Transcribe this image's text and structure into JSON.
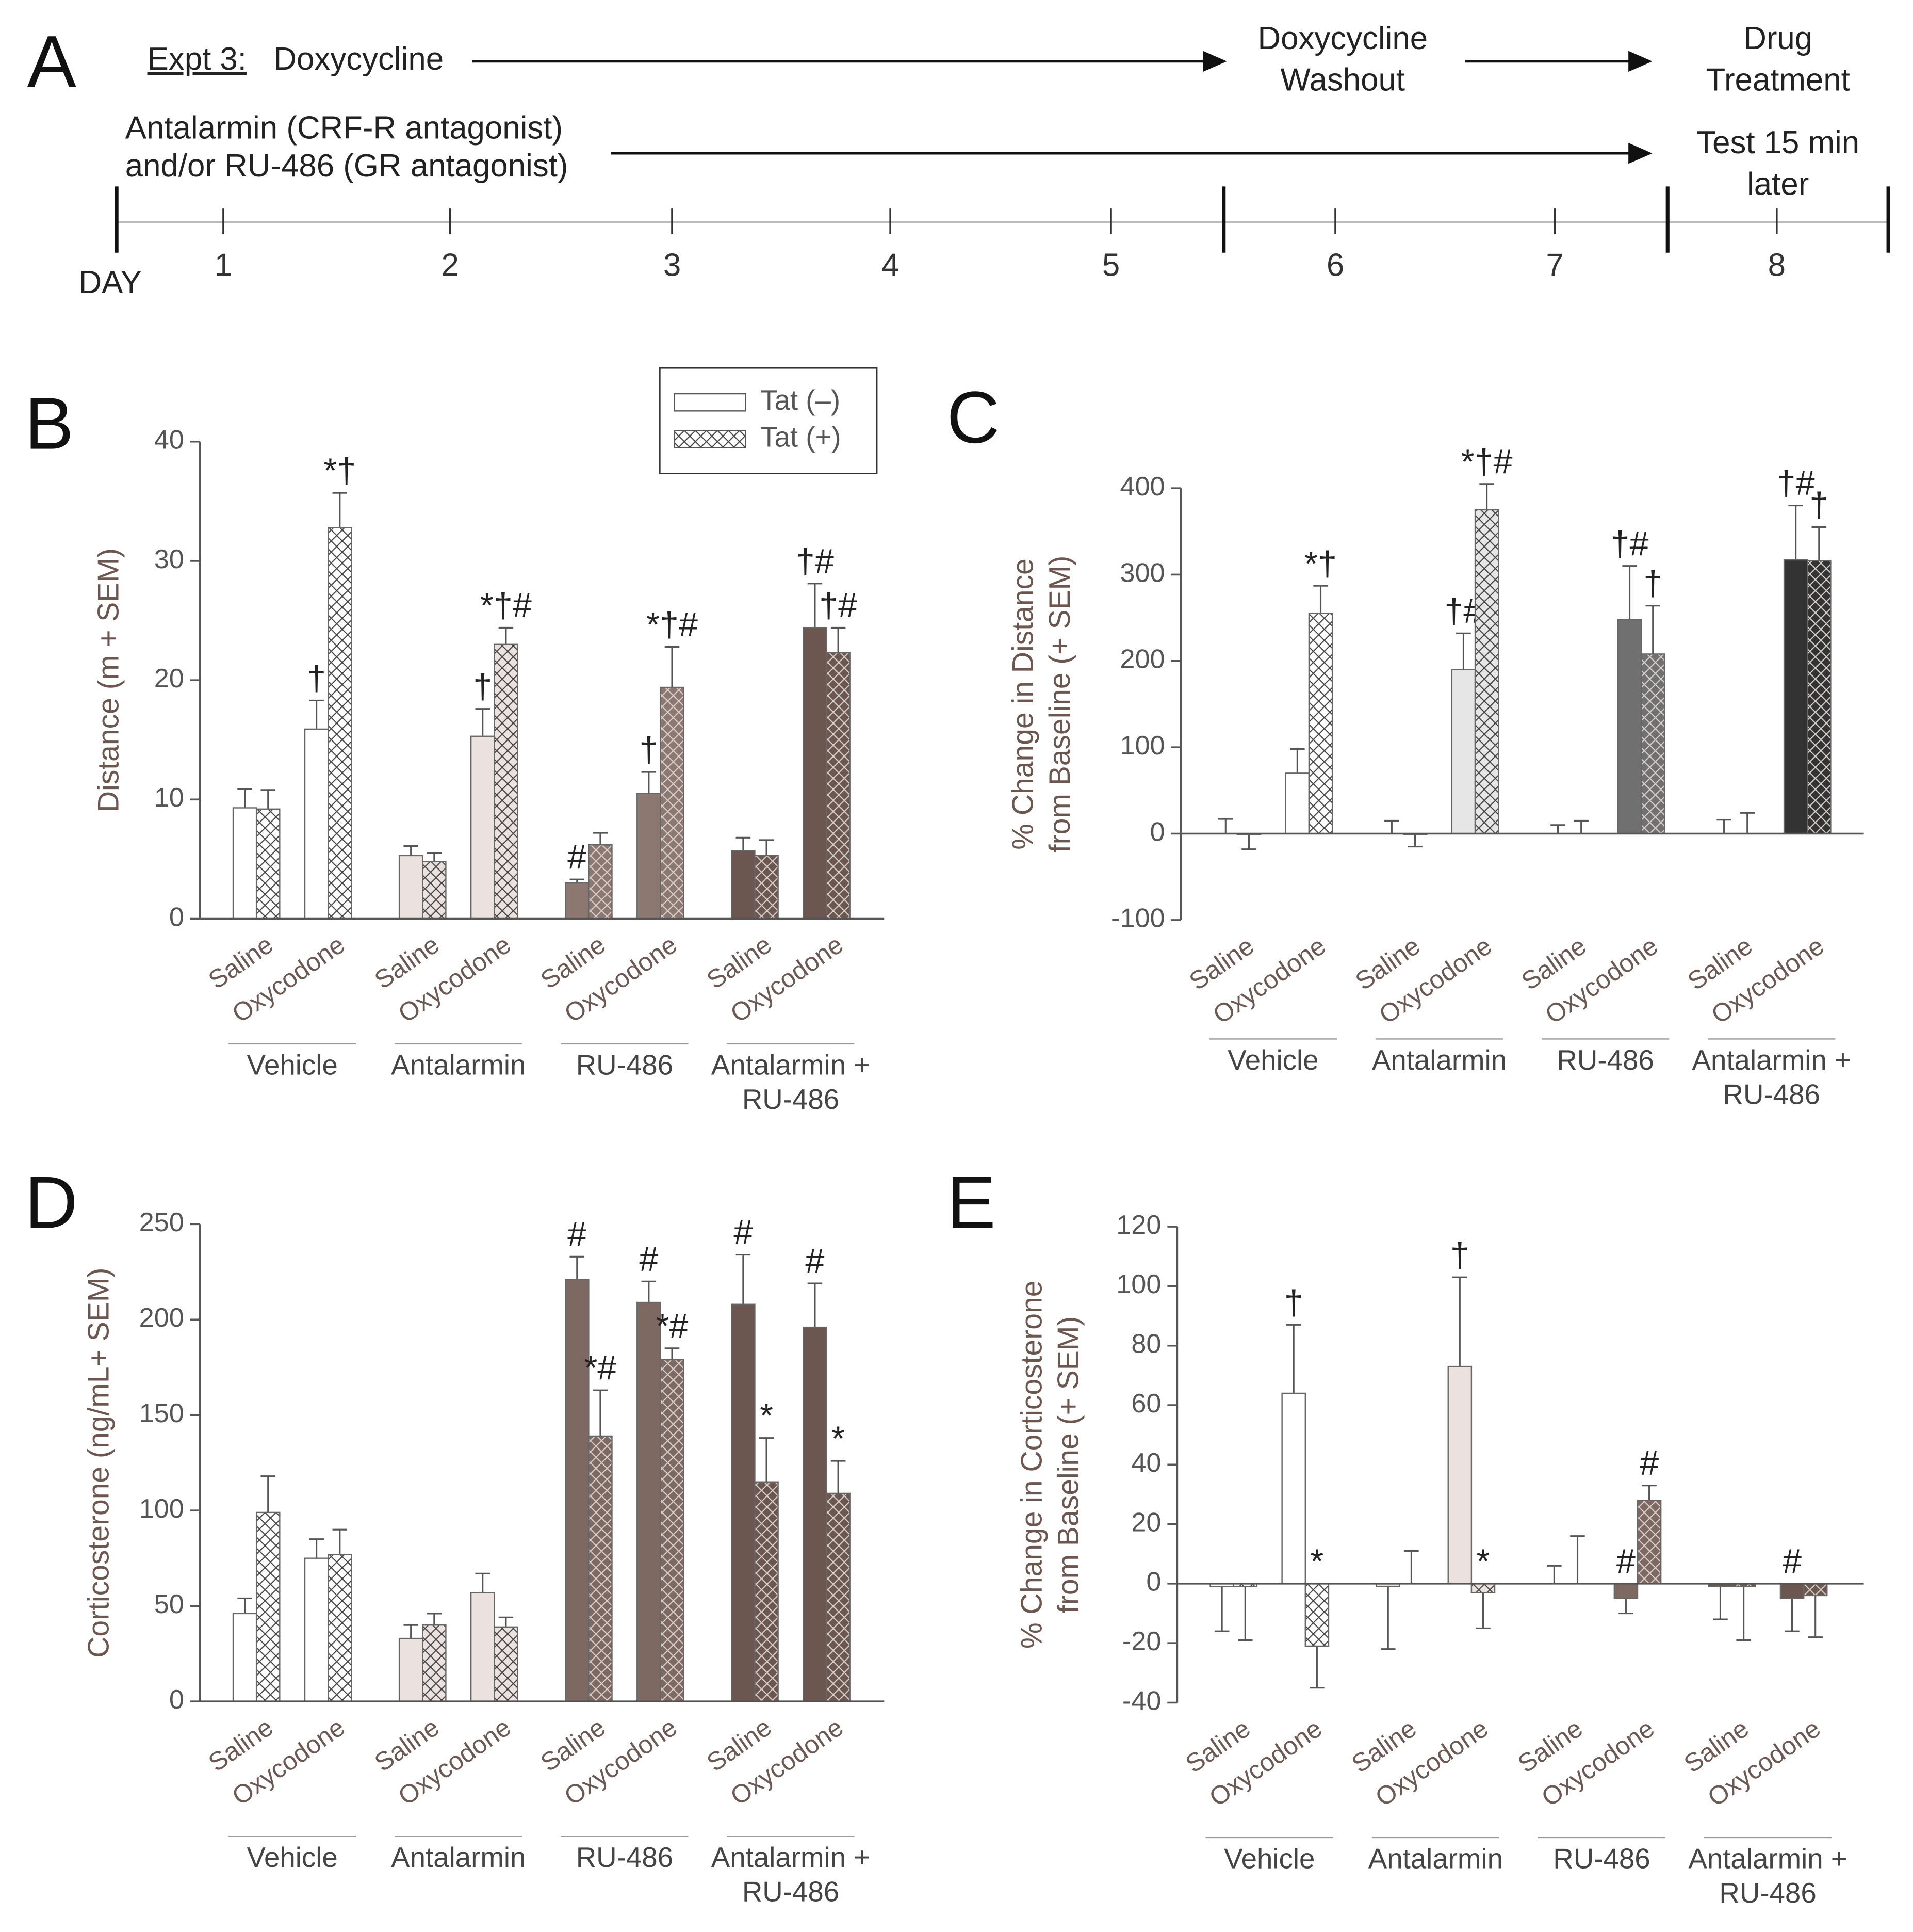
{
  "timeline": {
    "label": "A",
    "expt_prefix": "Expt 3:",
    "expt": "Doxycycline",
    "washout": [
      "Doxycycline",
      "Washout"
    ],
    "treatment": [
      "Drug",
      "Treatment"
    ],
    "antagonists": [
      "Antalarmin (CRF-R antagonist)",
      "and/or RU-486 (GR antagonist)"
    ],
    "test": [
      "Test 15 min",
      "later"
    ],
    "day_label": "DAY",
    "days": [
      1,
      2,
      3,
      4,
      5,
      6,
      7,
      8
    ]
  },
  "chart_data": [
    {
      "type": "bar",
      "panel": "B",
      "ylabel": [
        "Distance (m + SEM)"
      ],
      "categories": [
        "Saline",
        "Oxycodone",
        "Saline",
        "Oxycodone",
        "Saline",
        "Oxycodone",
        "Saline",
        "Oxycodone"
      ],
      "groups": [
        [
          "Vehicle"
        ],
        [
          "Antalarmin"
        ],
        [
          "RU-486"
        ],
        [
          "Antalarmin +",
          "RU-486"
        ]
      ],
      "group_colors": [
        "#ffffff",
        "#ebe1de",
        "#8c7870",
        "#6b5750"
      ],
      "ylim": [
        0,
        40
      ],
      "yticks": [
        0,
        10,
        20,
        30,
        40
      ],
      "series": [
        {
          "name": "Tat (–)",
          "color": "#ffffff",
          "hatch": false,
          "values": [
            9.3,
            15.9,
            5.3,
            15.3,
            3.0,
            10.5,
            5.7,
            24.4
          ],
          "errors": [
            1.6,
            2.4,
            0.8,
            2.3,
            0.3,
            1.8,
            1.1,
            3.7
          ],
          "annotations": [
            null,
            "†",
            null,
            "†",
            "#",
            "†",
            null,
            "†#"
          ]
        },
        {
          "name": "Tat (+)",
          "color": "#ffffff",
          "hatch": true,
          "values": [
            9.2,
            32.8,
            4.8,
            23.0,
            6.2,
            19.4,
            5.3,
            22.3
          ],
          "errors": [
            1.6,
            2.9,
            0.7,
            1.4,
            1.0,
            3.4,
            1.3,
            2.1
          ],
          "annotations": [
            null,
            "*†",
            null,
            "*†#",
            null,
            "*†#",
            null,
            "†#"
          ]
        }
      ]
    },
    {
      "type": "bar",
      "panel": "C",
      "ylabel": [
        "% Change in Distance",
        "from Baseline (+ SEM)"
      ],
      "categories": [
        "Saline",
        "Oxycodone",
        "Saline",
        "Oxycodone",
        "Saline",
        "Oxycodone",
        "Saline",
        "Oxycodone"
      ],
      "groups": [
        [
          "Vehicle"
        ],
        [
          "Antalarmin"
        ],
        [
          "RU-486"
        ],
        [
          "Antalarmin +",
          "RU-486"
        ]
      ],
      "group_colors": [
        "#ffffff",
        "#e6e6e6",
        "#707070",
        "#333333"
      ],
      "ylim": [
        -100,
        400
      ],
      "yticks": [
        -100,
        0,
        100,
        200,
        300,
        400
      ],
      "series": [
        {
          "hatch": false,
          "values": [
            0,
            70,
            0,
            190,
            0,
            248,
            0,
            317
          ],
          "errors": [
            17,
            28,
            15,
            42,
            10,
            62,
            16,
            63
          ],
          "annotations": [
            null,
            null,
            null,
            "†#",
            null,
            "†#",
            null,
            "†#"
          ]
        },
        {
          "hatch": true,
          "values": [
            -1,
            255,
            -1,
            375,
            0,
            208,
            0,
            316
          ],
          "errors": [
            17,
            32,
            14,
            30,
            15,
            56,
            24,
            39
          ],
          "annotations": [
            null,
            "*†",
            null,
            "*†#",
            null,
            "†",
            null,
            "†"
          ]
        }
      ]
    },
    {
      "type": "bar",
      "panel": "D",
      "ylabel": [
        "Corticosterone (ng/mL+ SEM)"
      ],
      "categories": [
        "Saline",
        "Oxycodone",
        "Saline",
        "Oxycodone",
        "Saline",
        "Oxycodone",
        "Saline",
        "Oxycodone"
      ],
      "groups": [
        [
          "Vehicle"
        ],
        [
          "Antalarmin"
        ],
        [
          "RU-486"
        ],
        [
          "Antalarmin +",
          "RU-486"
        ]
      ],
      "group_colors": [
        "#ffffff",
        "#ebe1de",
        "#7d6961",
        "#6b5750"
      ],
      "ylim": [
        0,
        250
      ],
      "yticks": [
        0,
        50,
        100,
        150,
        200,
        250
      ],
      "series": [
        {
          "hatch": false,
          "values": [
            46,
            75,
            33,
            57,
            221,
            209,
            208,
            196
          ],
          "errors": [
            8,
            10,
            7,
            10,
            12,
            11,
            26,
            23
          ],
          "annotations": [
            null,
            null,
            null,
            null,
            "#",
            "#",
            "#",
            "#"
          ]
        },
        {
          "hatch": true,
          "values": [
            99,
            77,
            40,
            39,
            139,
            179,
            115,
            109
          ],
          "errors": [
            19,
            13,
            6,
            5,
            24,
            6,
            23,
            17
          ],
          "annotations": [
            null,
            null,
            null,
            null,
            "*#",
            "*#",
            "*",
            "*"
          ]
        }
      ]
    },
    {
      "type": "bar",
      "panel": "E",
      "ylabel": [
        "% Change in Corticosterone",
        "from Baseline (+ SEM)"
      ],
      "categories": [
        "Saline",
        "Oxycodone",
        "Saline",
        "Oxycodone",
        "Saline",
        "Oxycodone",
        "Saline",
        "Oxycodone"
      ],
      "groups": [
        [
          "Vehicle"
        ],
        [
          "Antalarmin"
        ],
        [
          "RU-486"
        ],
        [
          "Antalarmin +",
          "RU-486"
        ]
      ],
      "group_colors": [
        "#ffffff",
        "#ebe1de",
        "#7d6961",
        "#6b5750"
      ],
      "ylim": [
        -40,
        120
      ],
      "yticks": [
        -40,
        -20,
        0,
        20,
        40,
        60,
        80,
        100,
        120
      ],
      "series": [
        {
          "hatch": false,
          "values": [
            -1,
            64,
            -1,
            73,
            0,
            -5,
            -1,
            -5
          ],
          "errors": [
            15,
            23,
            21,
            30,
            6,
            5,
            11,
            11
          ],
          "annotations": [
            null,
            "†",
            null,
            "†",
            null,
            "#",
            null,
            "#"
          ]
        },
        {
          "hatch": true,
          "values": [
            -1,
            -21,
            0,
            -3,
            0,
            28,
            -1,
            -4
          ],
          "errors": [
            18,
            14,
            11,
            12,
            16,
            5,
            18,
            14
          ],
          "annotations": [
            null,
            "*",
            null,
            "*",
            null,
            "#",
            null,
            null
          ]
        }
      ]
    }
  ]
}
